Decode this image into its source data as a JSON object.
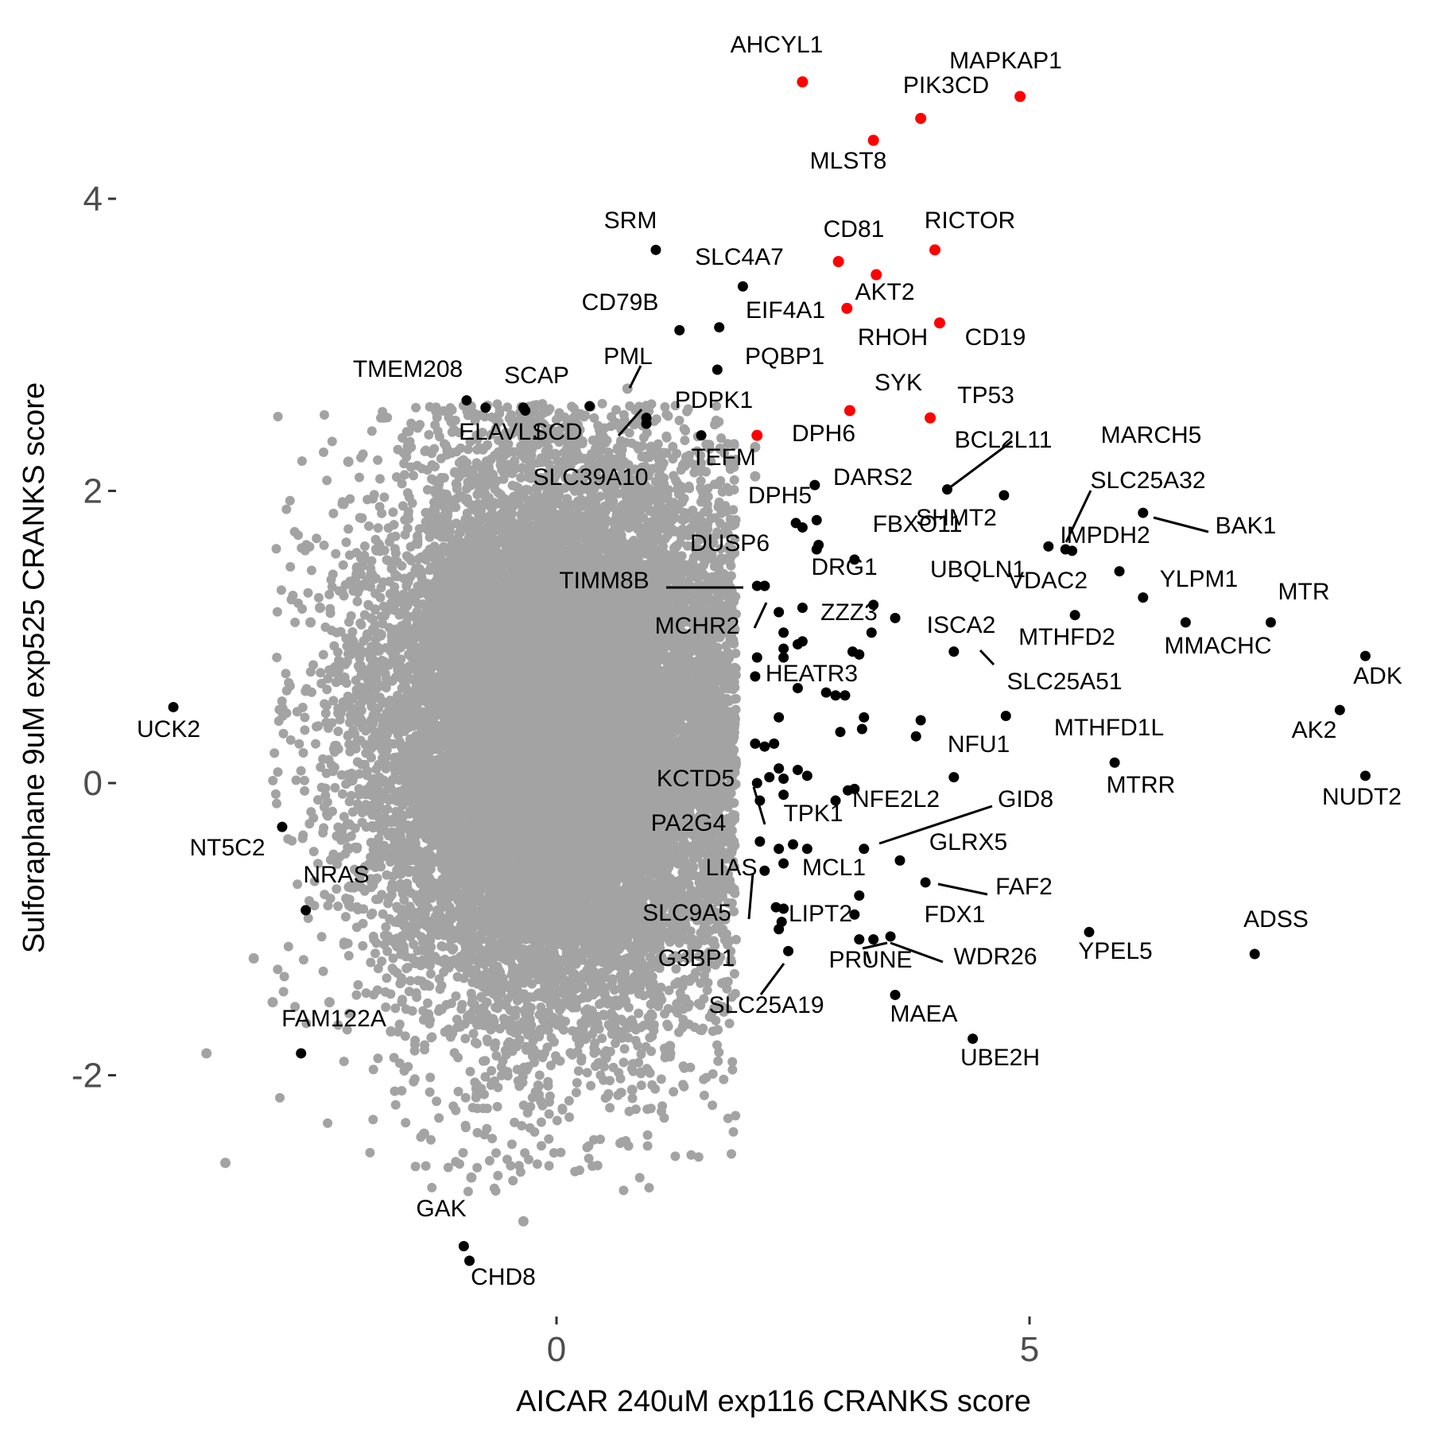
{
  "chart_data": {
    "type": "scatter",
    "xlabel": "AICAR 240uM exp116 CRANKS score",
    "ylabel": "Sulforaphane 9uM exp525 CRANKS score",
    "xlim": [
      -4.9,
      9.0
    ],
    "ylim": [
      -3.6,
      4.9
    ],
    "x_ticks": [
      0,
      5
    ],
    "y_ticks": [
      -2,
      0,
      2,
      4
    ],
    "x_tick_labels": [
      "0",
      "5"
    ],
    "y_tick_labels": [
      "-2",
      "0",
      "2",
      "4"
    ],
    "grid": false,
    "legend": "none",
    "colors": {
      "background_points": "#a3a3a3",
      "highlight": "#ff0000",
      "labeled": "#000000"
    },
    "background_cloud": {
      "description_count": 18000,
      "x_mean": 0.0,
      "x_sd": 0.95,
      "y_mean": 0.3,
      "y_sd": 0.95
    },
    "background_outliers": [
      [
        -3.7,
        -1.85
      ],
      [
        -3.5,
        -2.6
      ],
      [
        -2.2,
        2.2
      ],
      [
        -0.9,
        -2.7
      ],
      [
        -0.35,
        -3.0
      ],
      [
        0.75,
        2.7
      ],
      [
        2.1,
        2.3
      ],
      [
        2.1,
        2.1
      ],
      [
        1.6,
        2.3
      ],
      [
        -3.2,
        -1.2
      ],
      [
        -3.0,
        -1.5
      ],
      [
        -2.4,
        -1.5
      ],
      [
        -1.75,
        -1.7
      ],
      [
        -2.5,
        1.2
      ],
      [
        -2.6,
        1.1
      ],
      [
        -2.0,
        1.0
      ],
      [
        -1.2,
        1.9
      ],
      [
        0.9,
        2.1
      ],
      [
        -1.4,
        -2.4
      ],
      [
        0.8,
        -2.1
      ],
      [
        1.2,
        -1.8
      ]
    ],
    "highlighted_points": [
      {
        "gene": "AHCYL1",
        "x": 2.6,
        "y": 4.8
      },
      {
        "gene": "MAPKAP1",
        "x": 4.9,
        "y": 4.7
      },
      {
        "gene": "PIK3CD",
        "x": 3.85,
        "y": 4.55
      },
      {
        "gene": "MLST8",
        "x": 3.35,
        "y": 4.4
      },
      {
        "gene": "RICTOR",
        "x": 4.0,
        "y": 3.65
      },
      {
        "gene": "CD81",
        "x": 2.98,
        "y": 3.57
      },
      {
        "gene": "AKT2",
        "x": 3.38,
        "y": 3.48
      },
      {
        "gene": "RHOH",
        "x": 3.07,
        "y": 3.25
      },
      {
        "gene": "CD19",
        "x": 4.05,
        "y": 3.15
      },
      {
        "gene": "SYK",
        "x": 3.1,
        "y": 2.55
      },
      {
        "gene": "TP53",
        "x": 3.95,
        "y": 2.5
      },
      {
        "gene": "DPH6",
        "x": 2.12,
        "y": 2.38
      }
    ],
    "labeled_points": [
      {
        "gene": "SRM",
        "x": 1.05,
        "y": 3.65
      },
      {
        "gene": "SLC4A7",
        "x": 1.97,
        "y": 3.4
      },
      {
        "gene": "CD79B",
        "x": 1.3,
        "y": 3.1
      },
      {
        "gene": "EIF4A1",
        "x": 1.72,
        "y": 3.12
      },
      {
        "gene": "PQBP1",
        "x": 1.7,
        "y": 2.83
      },
      {
        "gene": "TMEM208",
        "x": -0.95,
        "y": 2.62
      },
      {
        "gene": "SCAP",
        "x": -0.75,
        "y": 2.57
      },
      {
        "gene": "ELAVL1",
        "x": -0.33,
        "y": 2.55
      },
      {
        "gene": "PML",
        "x": 0.35,
        "y": 2.58
      },
      {
        "gene": "SCD",
        "x": 0.95,
        "y": 2.5
      },
      {
        "gene": "SLC39A10",
        "x": 0.95,
        "y": 2.46
      },
      {
        "gene": "PDPK1",
        "x": 1.53,
        "y": 2.38
      },
      {
        "gene": "TEFM",
        "x": 2.73,
        "y": 2.04
      },
      {
        "gene": "DARS2",
        "x": 4.13,
        "y": 2.01
      },
      {
        "gene": "BCL2L11",
        "x": 4.73,
        "y": 1.97
      },
      {
        "gene": "DPH5",
        "x": 2.53,
        "y": 1.78
      },
      {
        "gene": "FBXO11",
        "x": 2.6,
        "y": 1.75
      },
      {
        "gene": "SHMT2",
        "x": 2.75,
        "y": 1.8
      },
      {
        "gene": "SLC25A32",
        "x": 6.2,
        "y": 1.85
      },
      {
        "gene": "BAK1",
        "x": 5.2,
        "y": 1.62
      },
      {
        "gene": "IMPDH2",
        "x": 5.38,
        "y": 1.6
      },
      {
        "gene": "MARCH5",
        "x": 5.45,
        "y": 1.59
      },
      {
        "gene": "DUSP6",
        "x": 2.77,
        "y": 1.63
      },
      {
        "gene": "DRG1",
        "x": 3.15,
        "y": 1.53
      },
      {
        "gene": "UBQLN1",
        "x": 5.95,
        "y": 1.45
      },
      {
        "gene": "TIMM8B",
        "x": 2.12,
        "y": 1.35
      },
      {
        "gene": "VDAC2",
        "x": 6.2,
        "y": 1.27
      },
      {
        "gene": "YLPM1",
        "x": 6.65,
        "y": 1.1
      },
      {
        "gene": "MTR",
        "x": 7.55,
        "y": 1.1
      },
      {
        "gene": "MCHR2",
        "x": 2.2,
        "y": 1.35
      },
      {
        "gene": "ZZZ3",
        "x": 3.35,
        "y": 1.22
      },
      {
        "gene": "MTHFD2",
        "x": 5.48,
        "y": 1.15
      },
      {
        "gene": "ISCA2",
        "x": 3.58,
        "y": 1.13
      },
      {
        "gene": "ADK",
        "x": 8.55,
        "y": 0.87
      },
      {
        "gene": "MMACHC",
        "x": 4.2,
        "y": 0.9
      },
      {
        "gene": "HEATR3",
        "x": 3.13,
        "y": 0.9
      },
      {
        "gene": "SLC25A51",
        "x": 4.75,
        "y": 0.46
      },
      {
        "gene": "AK2",
        "x": 8.28,
        "y": 0.5
      },
      {
        "gene": "UCK2",
        "x": -4.05,
        "y": 0.52
      },
      {
        "gene": "MTHFD1L",
        "x": 3.85,
        "y": 0.43
      },
      {
        "gene": "NFU1",
        "x": 3.8,
        "y": 0.32
      },
      {
        "gene": "MTRR",
        "x": 5.9,
        "y": 0.14
      },
      {
        "gene": "NUDT2",
        "x": 8.55,
        "y": 0.05
      },
      {
        "gene": "KCTD5",
        "x": 2.12,
        "y": 0.0
      },
      {
        "gene": "NFE2L2",
        "x": 4.2,
        "y": 0.04
      },
      {
        "gene": "TPK1",
        "x": 3.08,
        "y": -0.05
      },
      {
        "gene": "GID8",
        "x": 3.25,
        "y": -0.45
      },
      {
        "gene": "PA2G4",
        "x": 2.15,
        "y": -0.4
      },
      {
        "gene": "NT5C2",
        "x": -2.9,
        "y": -0.3
      },
      {
        "gene": "GLRX5",
        "x": 3.63,
        "y": -0.53
      },
      {
        "gene": "LIAS",
        "x": 2.2,
        "y": -0.6
      },
      {
        "gene": "MCL1",
        "x": 3.2,
        "y": -0.77
      },
      {
        "gene": "FAF2",
        "x": 3.9,
        "y": -0.68
      },
      {
        "gene": "NRAS",
        "x": -2.65,
        "y": -0.87
      },
      {
        "gene": "SLC9A5",
        "x": 2.4,
        "y": -0.86
      },
      {
        "gene": "LIPT2",
        "x": 3.15,
        "y": -0.9
      },
      {
        "gene": "FDX1",
        "x": 3.35,
        "y": -1.07
      },
      {
        "gene": "ADSS",
        "x": 7.38,
        "y": -1.17
      },
      {
        "gene": "YPEL5",
        "x": 5.63,
        "y": -1.02
      },
      {
        "gene": "G3BP1",
        "x": 2.35,
        "y": -1.0
      },
      {
        "gene": "WDR26",
        "x": 3.53,
        "y": -1.05
      },
      {
        "gene": "PRUNE",
        "x": 3.2,
        "y": -1.07
      },
      {
        "gene": "SLC25A19",
        "x": 2.45,
        "y": -1.15
      },
      {
        "gene": "MAEA",
        "x": 3.58,
        "y": -1.45
      },
      {
        "gene": "UBE2H",
        "x": 4.4,
        "y": -1.75
      },
      {
        "gene": "FAM122A",
        "x": -2.7,
        "y": -1.85
      },
      {
        "gene": "GAK",
        "x": -0.98,
        "y": -3.17
      },
      {
        "gene": "CHD8",
        "x": -0.92,
        "y": -3.27
      }
    ],
    "unlabeled_black_points": [
      [
        -0.35,
        2.57
      ],
      [
        2.2,
        1.35
      ],
      [
        2.75,
        1.6
      ],
      [
        2.35,
        1.17
      ],
      [
        2.6,
        1.2
      ],
      [
        2.4,
        1.03
      ],
      [
        2.6,
        0.97
      ],
      [
        2.4,
        0.92
      ],
      [
        2.55,
        0.95
      ],
      [
        2.4,
        0.86
      ],
      [
        2.12,
        0.86
      ],
      [
        2.1,
        0.73
      ],
      [
        2.55,
        0.65
      ],
      [
        2.85,
        0.62
      ],
      [
        2.95,
        0.6
      ],
      [
        3.05,
        0.6
      ],
      [
        3.33,
        1.03
      ],
      [
        3.2,
        0.88
      ],
      [
        2.35,
        0.45
      ],
      [
        3.25,
        0.45
      ],
      [
        3.23,
        0.37
      ],
      [
        3.0,
        0.35
      ],
      [
        2.3,
        0.27
      ],
      [
        2.1,
        0.27
      ],
      [
        2.2,
        0.25
      ],
      [
        2.35,
        0.1
      ],
      [
        2.55,
        0.09
      ],
      [
        2.65,
        0.05
      ],
      [
        2.25,
        0.04
      ],
      [
        2.4,
        0.03
      ],
      [
        2.15,
        -0.12
      ],
      [
        2.4,
        -0.08
      ],
      [
        2.95,
        -0.12
      ],
      [
        3.15,
        -0.04
      ],
      [
        2.35,
        -0.45
      ],
      [
        2.5,
        -0.42
      ],
      [
        2.65,
        -0.45
      ],
      [
        2.4,
        -0.55
      ],
      [
        2.32,
        -0.85
      ],
      [
        2.38,
        -0.95
      ]
    ],
    "label_text": [
      "AHCYL1",
      "MAPKAP1",
      "PIK3CD",
      "MLST8",
      "SRM",
      "RICTOR",
      "CD81",
      "SLC4A7",
      "AKT2",
      "CD79B",
      "EIF4A1",
      "RHOH",
      "CD19",
      "PQBP1",
      "PML",
      "TMEM208",
      "SCAP",
      "SYK",
      "PDPK1",
      "TP53",
      "ELAVL1",
      "SCD",
      "DPH6",
      "MARCH5",
      "BCL2L11",
      "TEFM",
      "SLC39A10",
      "DARS2",
      "SLC25A32",
      "DPH5",
      "SHMT2",
      "FBXO11",
      "BAK1",
      "IMPDH2",
      "DUSP6",
      "DRG1",
      "UBQLN1",
      "YLPM1",
      "TIMM8B",
      "VDAC2",
      "MTR",
      "ZZZ3",
      "ISCA2",
      "MCHR2",
      "MTHFD2",
      "MMACHC",
      "ADK",
      "HEATR3",
      "SLC25A51",
      "UCK2",
      "AK2",
      "MTHFD1L",
      "NFU1",
      "KCTD5",
      "MTRR",
      "NUDT2",
      "NFE2L2",
      "GID8",
      "TPK1",
      "PA2G4",
      "NT5C2",
      "GLRX5",
      "LIAS",
      "MCL1",
      "NRAS",
      "FAF2",
      "SLC9A5",
      "LIPT2",
      "FDX1",
      "ADSS",
      "G3BP1",
      "WDR26",
      "PRUNE",
      "YPEL5",
      "SLC25A19",
      "MAEA",
      "FAM122A",
      "UBE2H",
      "GAK",
      "CHD8"
    ]
  }
}
